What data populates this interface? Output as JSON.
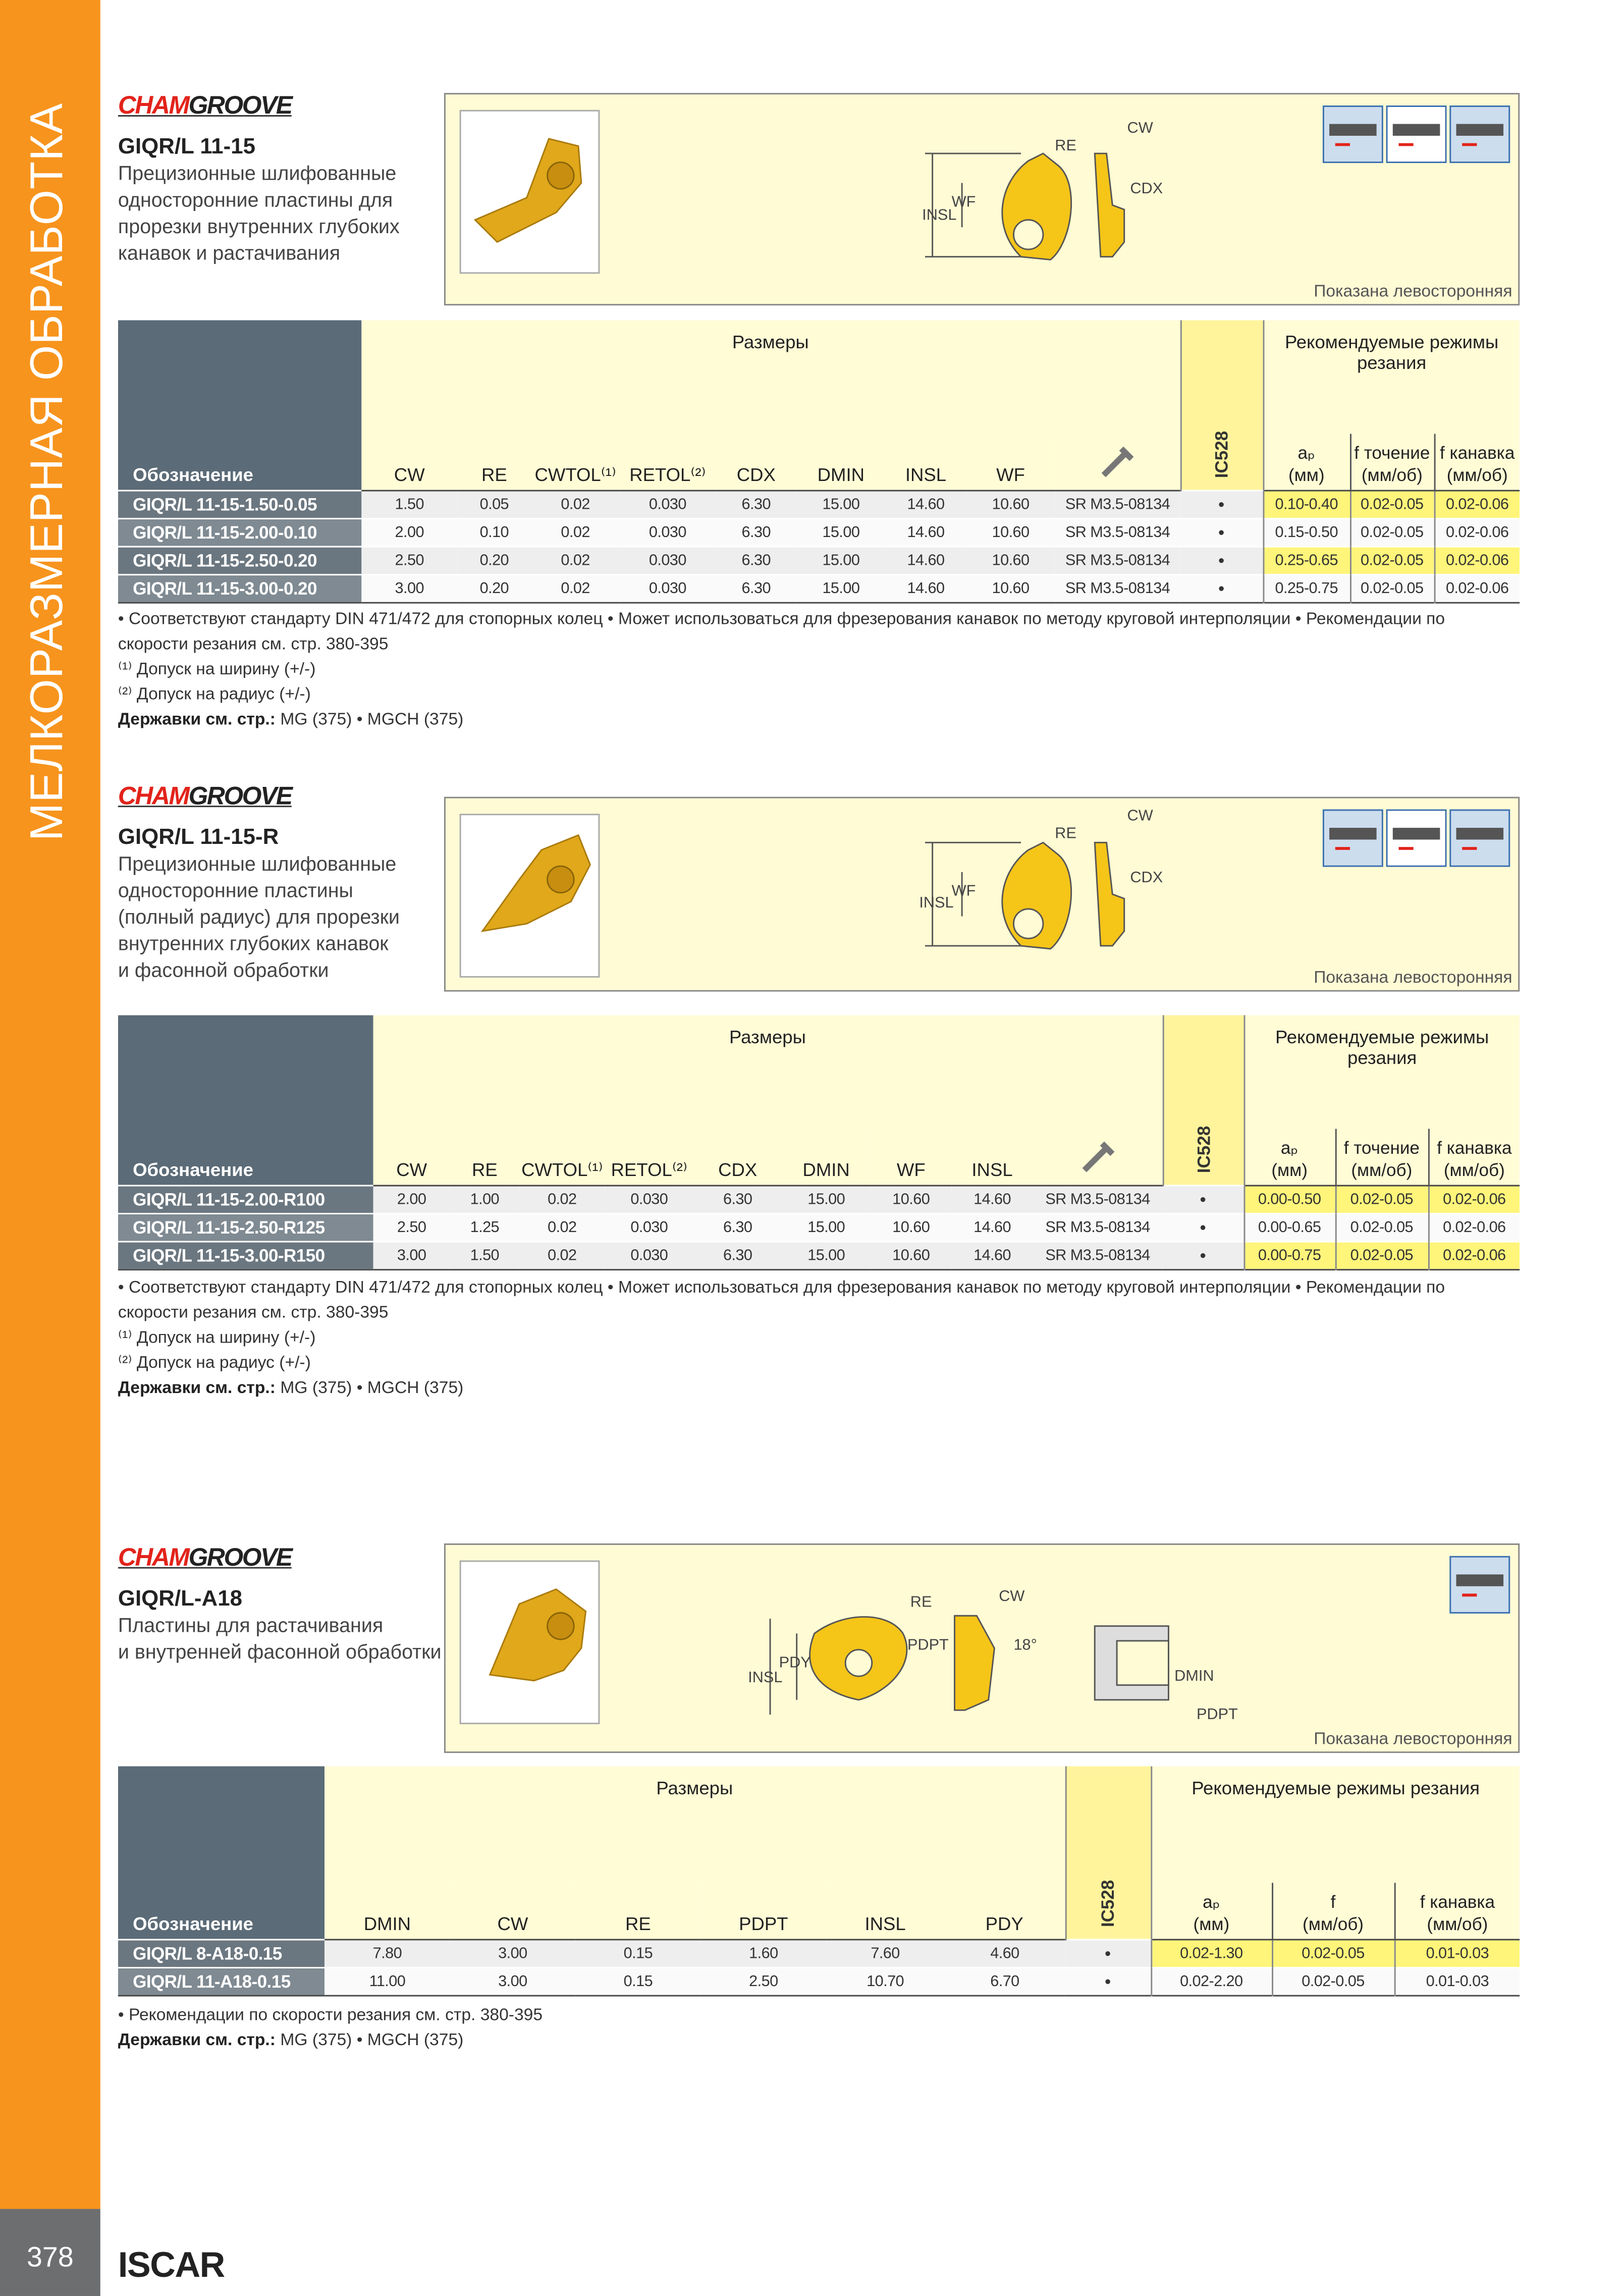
{
  "sidebar": "МЕЛКОРАЗМЕРНАЯ ОБРАБОТКА",
  "footer": {
    "page": "378",
    "brand": "ISCAR"
  },
  "sections": [
    {
      "brand": [
        "CHAM",
        "GROOVE"
      ],
      "title": "GIQR/L 11-15",
      "description": [
        "Прецизионные шлифованные",
        "односторонние пластины для",
        "прорезки внутренних глубоких",
        "канавок и растачивания"
      ],
      "diagram_labels": [
        "CW",
        "RE",
        "CDX",
        "WF",
        "INSL"
      ],
      "shown": "Показана левосторонняя",
      "table": {
        "designation": "Обозначение",
        "dims_group": "Размеры",
        "grade": "IC528",
        "cut_group": "Рекомендуемые режимы резания",
        "dims": [
          "CW",
          "RE",
          "CWTOL⁽¹⁾",
          "RETOL⁽²⁾",
          "CDX",
          "DMIN",
          "INSL",
          "WF"
        ],
        "cut": [
          [
            "aₚ",
            "(мм)"
          ],
          [
            "f точение",
            "(мм/об)"
          ],
          [
            "f канавка",
            "(мм/об)"
          ]
        ],
        "rows": [
          {
            "designation": "GIQR/L 11-15-1.50-0.05",
            "dims": [
              "1.50",
              "0.05",
              "0.02",
              "0.030",
              "6.30",
              "15.00",
              "14.60",
              "10.60"
            ],
            "screw": "SR M3.5-08134",
            "grade": "•",
            "cut": [
              "0.10-0.40",
              "0.02-0.05",
              "0.02-0.06"
            ]
          },
          {
            "designation": "GIQR/L 11-15-2.00-0.10",
            "dims": [
              "2.00",
              "0.10",
              "0.02",
              "0.030",
              "6.30",
              "15.00",
              "14.60",
              "10.60"
            ],
            "screw": "SR M3.5-08134",
            "grade": "•",
            "cut": [
              "0.15-0.50",
              "0.02-0.05",
              "0.02-0.06"
            ]
          },
          {
            "designation": "GIQR/L 11-15-2.50-0.20",
            "dims": [
              "2.50",
              "0.20",
              "0.02",
              "0.030",
              "6.30",
              "15.00",
              "14.60",
              "10.60"
            ],
            "screw": "SR M3.5-08134",
            "grade": "•",
            "cut": [
              "0.25-0.65",
              "0.02-0.05",
              "0.02-0.06"
            ]
          },
          {
            "designation": "GIQR/L 11-15-3.00-0.20",
            "dims": [
              "3.00",
              "0.20",
              "0.02",
              "0.030",
              "6.30",
              "15.00",
              "14.60",
              "10.60"
            ],
            "screw": "SR M3.5-08134",
            "grade": "•",
            "cut": [
              "0.25-0.75",
              "0.02-0.05",
              "0.02-0.06"
            ]
          }
        ]
      },
      "notes": [
        "• Соответствуют стандарту DIN 471/472 для стопорных колец • Может использоваться для фрезерования канавок по методу круговой интерполяции • Рекомендации по скорости резания см. стр. 380-395",
        "⁽¹⁾ Допуск на ширину (+/-)",
        "⁽²⁾ Допуск на радиус (+/-)"
      ],
      "holders_label": "Державки см. стр.:",
      "holders": "MG (375) • MGCH (375)"
    },
    {
      "brand": [
        "CHAM",
        "GROOVE"
      ],
      "title": "GIQR/L 11-15-R",
      "description": [
        "Прецизионные шлифованные",
        "односторонние пластины",
        "(полный радиус) для прорезки",
        "внутренних глубоких канавок",
        "и фасонной обработки"
      ],
      "diagram_labels": [
        "CW",
        "RE",
        "CDX",
        "WF",
        "INSL"
      ],
      "shown": "Показана левосторонняя",
      "table": {
        "designation": "Обозначение",
        "dims_group": "Размеры",
        "grade": "IC528",
        "cut_group": "Рекомендуемые режимы резания",
        "dims": [
          "CW",
          "RE",
          "CWTOL⁽¹⁾",
          "RETOL⁽²⁾",
          "CDX",
          "DMIN",
          "WF",
          "INSL"
        ],
        "cut": [
          [
            "aₚ",
            "(мм)"
          ],
          [
            "f точение",
            "(мм/об)"
          ],
          [
            "f канавка",
            "(мм/об)"
          ]
        ],
        "rows": [
          {
            "designation": "GIQR/L 11-15-2.00-R100",
            "dims": [
              "2.00",
              "1.00",
              "0.02",
              "0.030",
              "6.30",
              "15.00",
              "10.60",
              "14.60"
            ],
            "screw": "SR M3.5-08134",
            "grade": "•",
            "cut": [
              "0.00-0.50",
              "0.02-0.05",
              "0.02-0.06"
            ]
          },
          {
            "designation": "GIQR/L 11-15-2.50-R125",
            "dims": [
              "2.50",
              "1.25",
              "0.02",
              "0.030",
              "6.30",
              "15.00",
              "10.60",
              "14.60"
            ],
            "screw": "SR M3.5-08134",
            "grade": "•",
            "cut": [
              "0.00-0.65",
              "0.02-0.05",
              "0.02-0.06"
            ]
          },
          {
            "designation": "GIQR/L 11-15-3.00-R150",
            "dims": [
              "3.00",
              "1.50",
              "0.02",
              "0.030",
              "6.30",
              "15.00",
              "10.60",
              "14.60"
            ],
            "screw": "SR M3.5-08134",
            "grade": "•",
            "cut": [
              "0.00-0.75",
              "0.02-0.05",
              "0.02-0.06"
            ]
          }
        ]
      },
      "notes": [
        "• Соответствуют стандарту DIN 471/472 для стопорных колец • Может использоваться для фрезерования канавок по методу круговой интерполяции • Рекомендации по скорости резания см. стр. 380-395",
        "⁽¹⁾ Допуск на ширину (+/-)",
        "⁽²⁾ Допуск на радиус (+/-)"
      ],
      "holders_label": "Державки см. стр.:",
      "holders": "MG (375) • MGCH (375)"
    },
    {
      "brand": [
        "CHAM",
        "GROOVE"
      ],
      "title": "GIQR/L-A18",
      "description": [
        "Пластины для растачивания",
        "и внутренней фасонной обработки"
      ],
      "diagram_labels": [
        "RE",
        "CW",
        "PDPT",
        "18°",
        "PDY",
        "INSL",
        "DMIN",
        "PDPT"
      ],
      "shown": "Показана левосторонняя",
      "table": {
        "designation": "Обозначение",
        "dims_group": "Размеры",
        "grade": "IC528",
        "cut_group": "Рекомендуемые режимы резания",
        "dims": [
          "DMIN",
          "CW",
          "RE",
          "PDPT",
          "INSL",
          "PDY"
        ],
        "cut": [
          [
            "aₚ",
            "(мм)"
          ],
          [
            "f",
            "(мм/об)"
          ],
          [
            "f канавка",
            "(мм/об)"
          ]
        ],
        "rows": [
          {
            "designation": "GIQR/L 8-A18-0.15",
            "dims": [
              "7.80",
              "3.00",
              "0.15",
              "1.60",
              "7.60",
              "4.60"
            ],
            "grade": "•",
            "cut": [
              "0.02-1.30",
              "0.02-0.05",
              "0.01-0.03"
            ]
          },
          {
            "designation": "GIQR/L 11-A18-0.15",
            "dims": [
              "11.00",
              "3.00",
              "0.15",
              "2.50",
              "10.70",
              "6.70"
            ],
            "grade": "•",
            "cut": [
              "0.02-2.20",
              "0.02-0.05",
              "0.01-0.03"
            ]
          }
        ]
      },
      "notes": [
        "• Рекомендации по скорости резания см. стр. 380-395"
      ],
      "holders_label": "Державки см. стр.:",
      "holders": "MG (375) • MGCH (375)"
    }
  ]
}
